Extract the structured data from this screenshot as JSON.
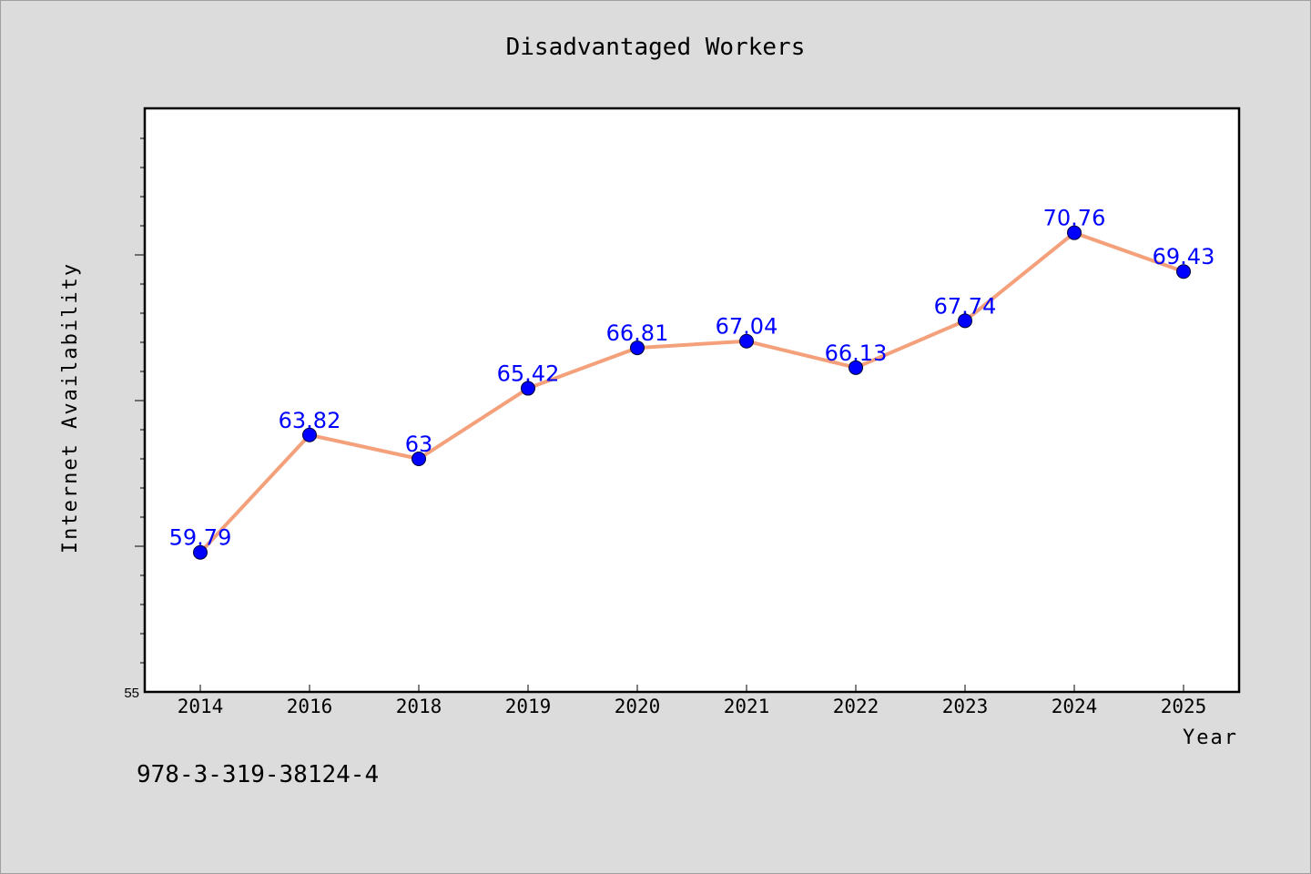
{
  "chart_data": {
    "type": "line",
    "title": "Disadvantaged Workers",
    "xlabel": "Year",
    "ylabel": "Internet Availability",
    "categories": [
      "2014",
      "2016",
      "2018",
      "2019",
      "2020",
      "2021",
      "2022",
      "2023",
      "2024",
      "2025"
    ],
    "series": [
      {
        "values": [
          59.79,
          63.82,
          63,
          65.42,
          66.81,
          67.04,
          66.13,
          67.74,
          70.76,
          69.43
        ],
        "labels": [
          "59.79",
          "63.82",
          "63",
          "65.42",
          "66.81",
          "67.04",
          "66.13",
          "67.74",
          "70.76",
          "69.43"
        ]
      }
    ],
    "ylim": [
      55,
      75
    ],
    "yticks_labeled": [
      "55"
    ],
    "grid": false,
    "line_color": "#f4a07a",
    "marker_color": "#0000ff",
    "label_color": "#0000ff"
  },
  "footer": {
    "isbn": "978-3-319-38124-4"
  }
}
